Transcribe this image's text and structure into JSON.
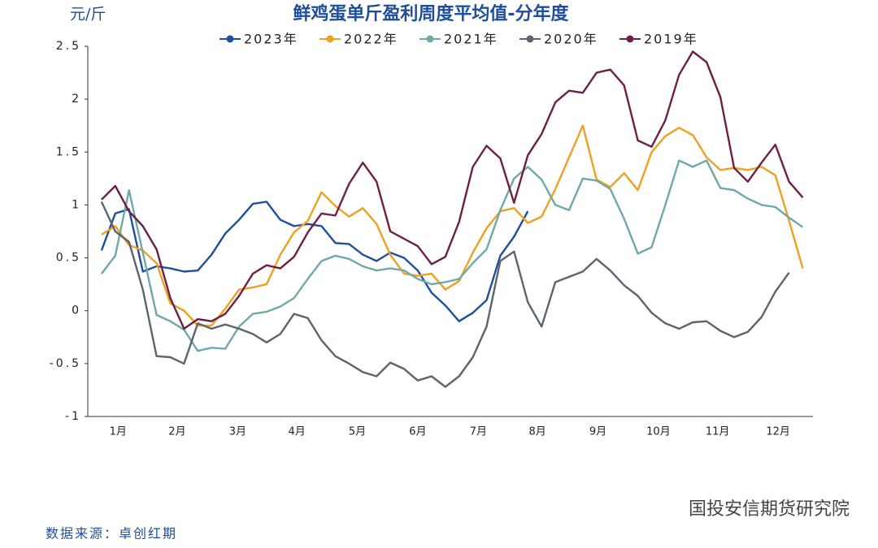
{
  "chart_data": {
    "type": "line",
    "title": "鲜鸡蛋单斤盈利周度平均值-分年度",
    "y_unit": "元/斤",
    "source": "数据来源：卓创红期",
    "watermark": "国投安信期货研究院",
    "x": [
      1,
      2,
      3,
      4,
      5,
      6,
      7,
      8,
      9,
      10,
      11,
      12,
      13,
      14,
      15,
      16,
      17,
      18,
      19,
      20,
      21,
      22,
      23,
      24,
      25,
      26,
      27,
      28,
      29,
      30,
      31,
      32,
      33,
      34,
      35,
      36,
      37,
      38,
      39,
      40,
      41,
      42,
      43,
      44,
      45,
      46,
      47,
      48,
      49,
      50,
      51,
      52
    ],
    "xlim": [
      0,
      52.5
    ],
    "xticks": [
      {
        "value": 2.2,
        "label": "1月"
      },
      {
        "value": 6.5,
        "label": "2月"
      },
      {
        "value": 10.9,
        "label": "3月"
      },
      {
        "value": 15.2,
        "label": "4月"
      },
      {
        "value": 19.6,
        "label": "5月"
      },
      {
        "value": 24.0,
        "label": "6月"
      },
      {
        "value": 28.4,
        "label": "7月"
      },
      {
        "value": 32.7,
        "label": "8月"
      },
      {
        "value": 37.1,
        "label": "9月"
      },
      {
        "value": 41.5,
        "label": "10月"
      },
      {
        "value": 45.8,
        "label": "11月"
      },
      {
        "value": 50.2,
        "label": "12月"
      }
    ],
    "ylim": [
      -1,
      2.5
    ],
    "yticks": [
      -1,
      -0.5,
      0,
      0.5,
      1,
      1.5,
      2,
      2.5
    ],
    "grid": false,
    "series": [
      {
        "name": "2023年",
        "color": "#1f4e9c",
        "values": [
          0.57,
          0.92,
          0.96,
          0.37,
          0.42,
          0.4,
          0.37,
          0.38,
          0.53,
          0.73,
          0.86,
          1.01,
          1.03,
          0.86,
          0.8,
          0.82,
          0.8,
          0.64,
          0.63,
          0.53,
          0.47,
          0.55,
          0.5,
          0.38,
          0.17,
          0.05,
          -0.1,
          -0.02,
          0.1,
          0.52,
          0.7,
          0.94,
          null,
          null,
          null,
          null,
          null,
          null,
          null,
          null,
          null,
          null,
          null,
          null,
          null,
          null,
          null,
          null,
          null,
          null,
          null,
          null
        ]
      },
      {
        "name": "2022年",
        "color": "#f0a020",
        "values": [
          0.72,
          0.8,
          0.62,
          0.57,
          0.45,
          0.07,
          0.0,
          -0.14,
          -0.14,
          0.02,
          0.2,
          0.22,
          0.25,
          0.53,
          0.74,
          0.85,
          1.12,
          0.99,
          0.89,
          0.97,
          0.82,
          0.53,
          0.35,
          0.33,
          0.35,
          0.2,
          0.28,
          0.55,
          0.78,
          0.94,
          0.97,
          0.83,
          0.89,
          1.15,
          1.45,
          1.75,
          1.24,
          1.17,
          1.3,
          1.14,
          1.5,
          1.65,
          1.73,
          1.66,
          1.45,
          1.33,
          1.35,
          1.33,
          1.36,
          1.28,
          0.85,
          0.4
        ]
      },
      {
        "name": "2021年",
        "color": "#6fa8ab",
        "values": [
          0.35,
          0.52,
          1.14,
          0.55,
          -0.04,
          -0.1,
          -0.18,
          -0.38,
          -0.35,
          -0.36,
          -0.15,
          -0.03,
          -0.01,
          0.04,
          0.12,
          0.3,
          0.47,
          0.52,
          0.49,
          0.42,
          0.38,
          0.4,
          0.38,
          0.3,
          0.25,
          0.27,
          0.3,
          0.45,
          0.58,
          0.95,
          1.25,
          1.36,
          1.24,
          1.0,
          0.95,
          1.25,
          1.23,
          1.15,
          0.87,
          0.54,
          0.6,
          1.0,
          1.42,
          1.36,
          1.42,
          1.16,
          1.14,
          1.06,
          1.0,
          0.98,
          0.88,
          0.79
        ]
      },
      {
        "name": "2020年",
        "color": "#5a6570",
        "values": [
          1.03,
          0.75,
          0.65,
          0.2,
          -0.43,
          -0.44,
          -0.5,
          -0.12,
          -0.17,
          -0.13,
          -0.17,
          -0.22,
          -0.3,
          -0.22,
          -0.03,
          -0.07,
          -0.28,
          -0.43,
          -0.5,
          -0.58,
          -0.62,
          -0.49,
          -0.55,
          -0.66,
          -0.62,
          -0.72,
          -0.62,
          -0.44,
          -0.15,
          0.47,
          0.56,
          0.08,
          -0.15,
          0.27,
          0.32,
          0.37,
          0.49,
          0.38,
          0.24,
          0.14,
          -0.02,
          -0.12,
          -0.17,
          -0.11,
          -0.1,
          -0.19,
          -0.25,
          -0.2,
          -0.06,
          0.18,
          0.36,
          null
        ]
      },
      {
        "name": "2019年",
        "color": "#6e1f45",
        "values": [
          1.05,
          1.18,
          0.94,
          0.8,
          0.58,
          0.12,
          -0.17,
          -0.08,
          -0.1,
          -0.03,
          0.14,
          0.35,
          0.43,
          0.4,
          0.51,
          0.74,
          0.92,
          0.9,
          1.2,
          1.4,
          1.22,
          0.75,
          0.68,
          0.61,
          0.44,
          0.51,
          0.84,
          1.36,
          1.56,
          1.44,
          1.02,
          1.47,
          1.67,
          1.97,
          2.08,
          2.06,
          2.25,
          2.28,
          2.13,
          1.61,
          1.55,
          1.8,
          2.23,
          2.45,
          2.35,
          2.02,
          1.35,
          1.22,
          1.4,
          1.57,
          1.22,
          1.07
        ]
      }
    ]
  }
}
